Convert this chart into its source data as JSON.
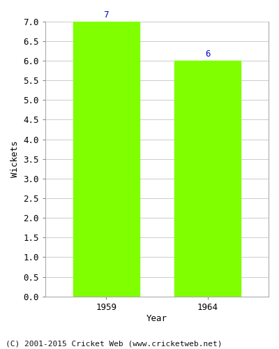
{
  "categories": [
    "1959",
    "1964"
  ],
  "values": [
    7,
    6
  ],
  "bar_color": "#7fff00",
  "bar_width": 0.65,
  "label_color": "#0000cc",
  "label_fontsize": 9,
  "xlabel": "Year",
  "ylabel": "Wickets",
  "ylim": [
    0.0,
    7.0
  ],
  "ytick_step": 0.5,
  "grid_color": "#cccccc",
  "background_color": "#ffffff",
  "footer_text": "(C) 2001-2015 Cricket Web (www.cricketweb.net)",
  "footer_fontsize": 8,
  "axis_label_fontsize": 9,
  "tick_fontsize": 9,
  "xlabel_fontsize": 9
}
